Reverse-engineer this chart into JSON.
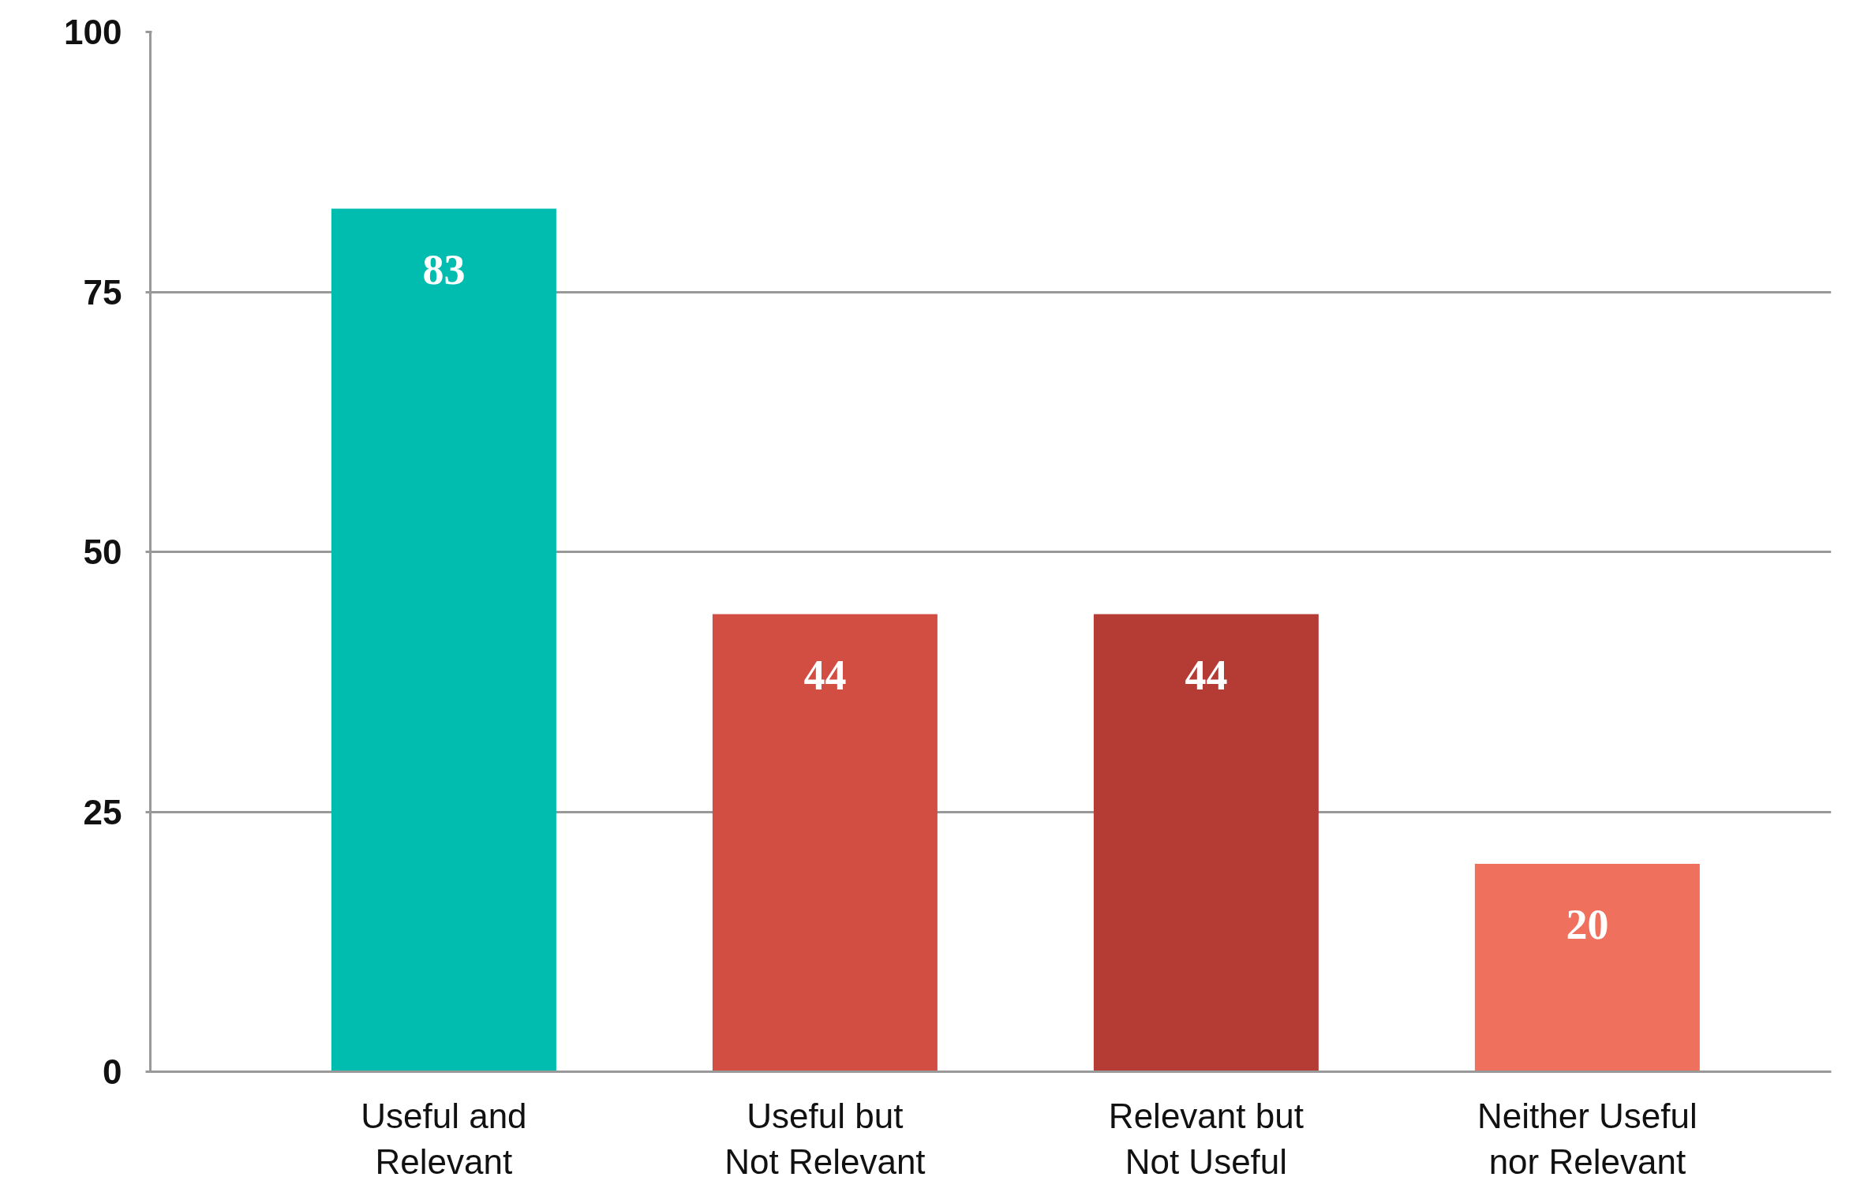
{
  "chart_data": {
    "type": "bar",
    "categories": [
      "Useful and\nRelevant",
      "Useful but\nNot Relevant",
      "Relevant but\nNot Useful",
      "Neither Useful\nnor Relevant"
    ],
    "values": [
      83,
      44,
      44,
      20
    ],
    "colors": [
      "#00bdb0",
      "#d24d42",
      "#b53b35",
      "#ef705d"
    ],
    "ylim": [
      0,
      100
    ],
    "yticks": [
      0,
      25,
      50,
      75,
      100
    ],
    "grid": "y",
    "data_labels": true
  }
}
